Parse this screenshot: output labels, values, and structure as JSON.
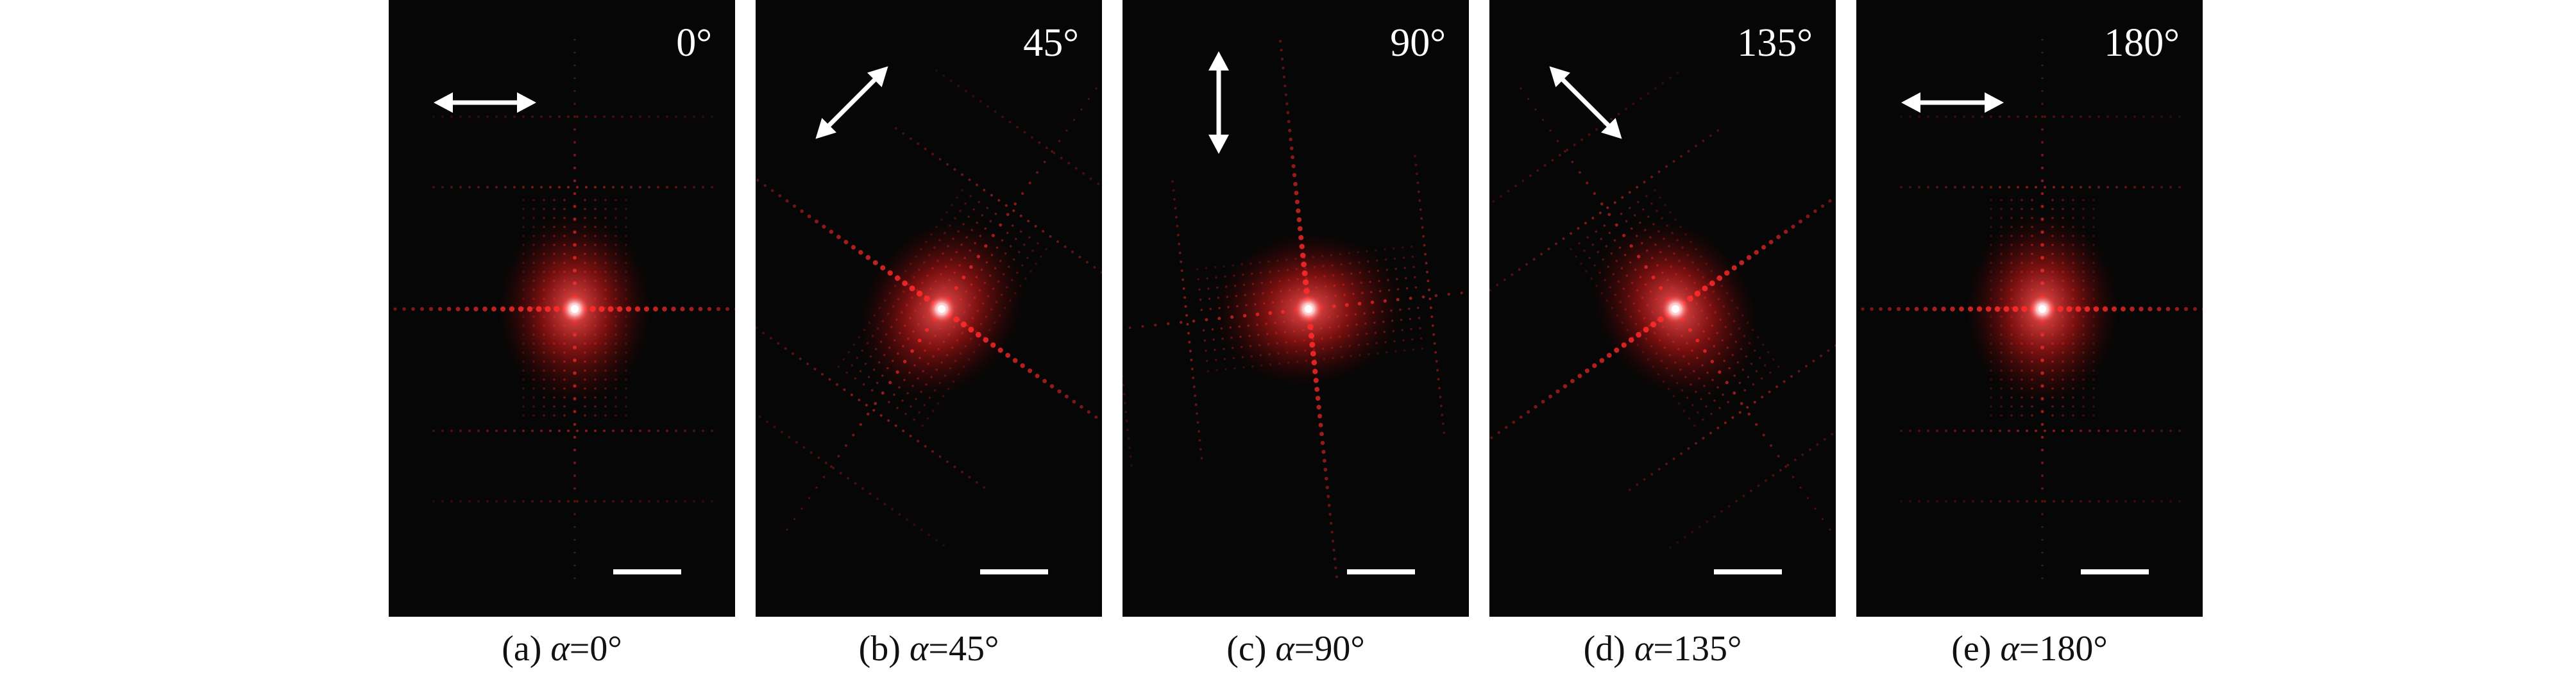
{
  "panels": [
    {
      "id": "a",
      "angle_label": "0°",
      "caption": {
        "prefix": "(a) ",
        "symbol": "α",
        "value": "=0°"
      },
      "polarization_angle_deg": 0,
      "pattern_rotation_deg": 0
    },
    {
      "id": "b",
      "angle_label": "45°",
      "caption": {
        "prefix": "(b) ",
        "symbol": "α",
        "value": "=45°"
      },
      "polarization_angle_deg": 45,
      "pattern_rotation_deg": 35
    },
    {
      "id": "c",
      "angle_label": "90°",
      "caption": {
        "prefix": "(c) ",
        "symbol": "α",
        "value": "=90°"
      },
      "polarization_angle_deg": 90,
      "pattern_rotation_deg": 84
    },
    {
      "id": "d",
      "angle_label": "135°",
      "caption": {
        "prefix": "(d) ",
        "symbol": "α",
        "value": "=135°"
      },
      "polarization_angle_deg": 135,
      "pattern_rotation_deg": -35
    },
    {
      "id": "e",
      "angle_label": "180°",
      "caption": {
        "prefix": "(e) ",
        "symbol": "α",
        "value": "=180°"
      },
      "polarization_angle_deg": 180,
      "pattern_rotation_deg": 0
    }
  ],
  "colors": {
    "background": "#060606",
    "diffraction": "#ff2a2a",
    "core": "#ffffff",
    "annotation": "#ffffff"
  }
}
